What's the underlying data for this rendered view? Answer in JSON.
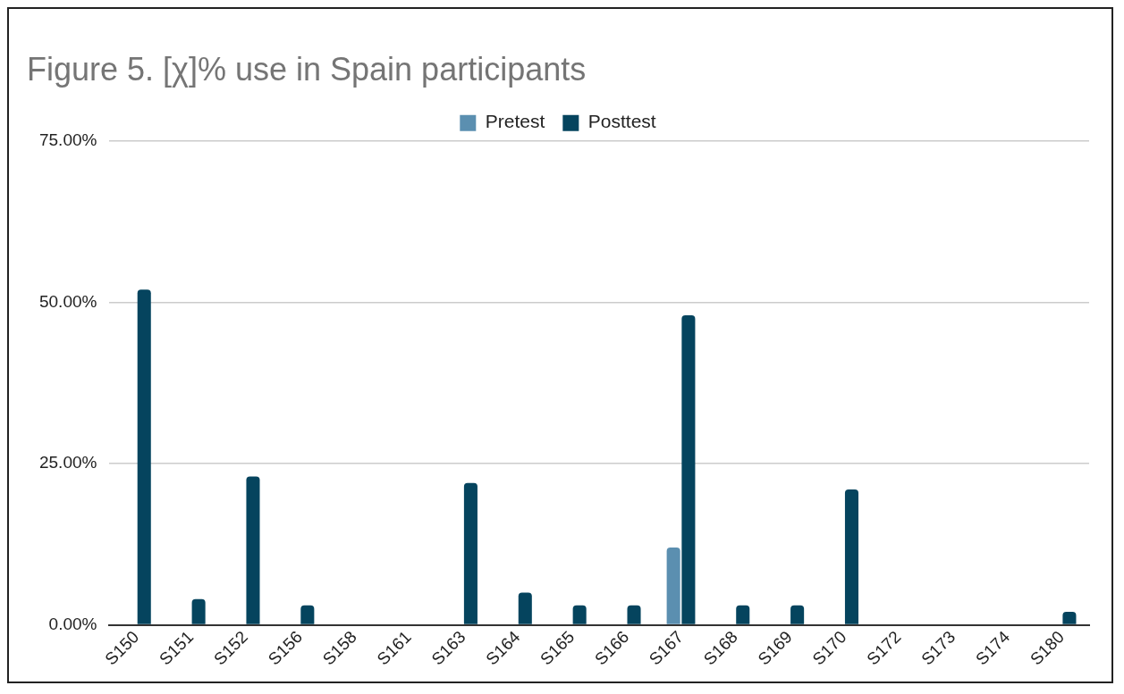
{
  "chart_data": {
    "type": "bar",
    "title": "Figure 5. [χ]% use in Spain participants",
    "categories": [
      "S150",
      "S151",
      "S152",
      "S156",
      "S158",
      "S161",
      "S163",
      "S164",
      "S165",
      "S166",
      "S167",
      "S168",
      "S169",
      "S170",
      "S172",
      "S173",
      "S174",
      "S180"
    ],
    "series": [
      {
        "name": "Pretest",
        "color": "#5b8fb0",
        "values": [
          0,
          0,
          0,
          0,
          0,
          0,
          0,
          0,
          0,
          0,
          12,
          0,
          0,
          0,
          0,
          0,
          0,
          0
        ]
      },
      {
        "name": "Posttest",
        "color": "#05445e",
        "values": [
          52,
          4,
          23,
          3,
          0,
          0,
          22,
          5,
          3,
          3,
          48,
          3,
          3,
          21,
          0,
          0,
          0,
          2
        ]
      }
    ],
    "ylim": [
      0,
      75
    ],
    "yticks": [
      {
        "value": 0,
        "label": "0.00%"
      },
      {
        "value": 25,
        "label": "25.00%"
      },
      {
        "value": 50,
        "label": "50.00%"
      },
      {
        "value": 75,
        "label": "75.00%"
      }
    ],
    "grid": "y",
    "legend": "top"
  }
}
